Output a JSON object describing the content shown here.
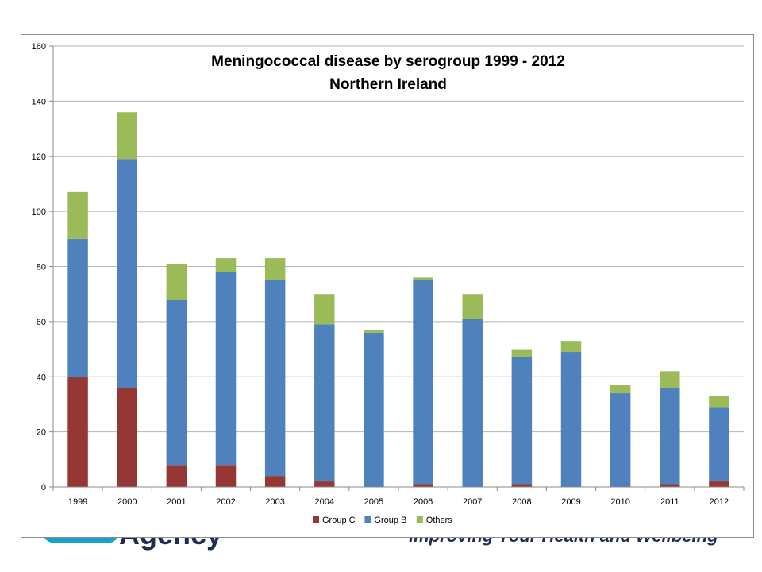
{
  "footer": {
    "logo_text": "Agency",
    "slogan": "Improving Your Health and Wellbeing"
  },
  "chart_data": {
    "type": "bar",
    "stacked": true,
    "title": [
      "Meningococcal disease by serogroup 1999 - 2012",
      "Northern Ireland"
    ],
    "xlabel": "",
    "ylabel": "",
    "categories": [
      "1999",
      "2000",
      "2001",
      "2002",
      "2003",
      "2004",
      "2005",
      "2006",
      "2007",
      "2008",
      "2009",
      "2010",
      "2011",
      "2012"
    ],
    "series": [
      {
        "name": "Group C",
        "color": "#953735",
        "values": [
          40,
          36,
          8,
          8,
          4,
          2,
          0,
          1,
          0,
          1,
          0,
          0,
          1,
          2
        ]
      },
      {
        "name": "Group B",
        "color": "#4f81bd",
        "values": [
          50,
          83,
          60,
          70,
          71,
          57,
          56,
          74,
          61,
          46,
          49,
          34,
          35,
          27
        ]
      },
      {
        "name": "Others",
        "color": "#9bbb59",
        "values": [
          17,
          17,
          13,
          5,
          8,
          11,
          1,
          1,
          9,
          3,
          4,
          3,
          6,
          4
        ]
      }
    ],
    "ylim": [
      0,
      160
    ],
    "yticks": [
      0,
      20,
      40,
      60,
      80,
      100,
      120,
      140,
      160
    ],
    "grid": true,
    "legend_position": "bottom"
  }
}
